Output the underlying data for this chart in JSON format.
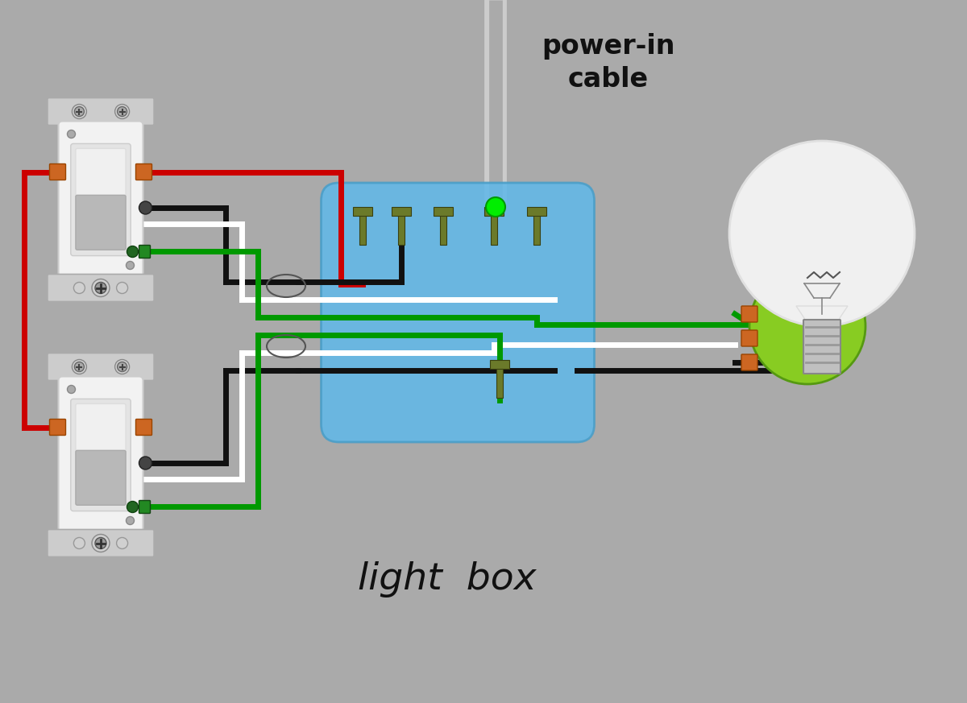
{
  "bg_color": "#aaaaaa",
  "power_in_label": "power-in\ncable",
  "light_box_label": "light  box",
  "red": "#cc0000",
  "black": "#111111",
  "white": "#ffffff",
  "green": "#009900",
  "bright_green": "#00ee00",
  "blue_box": "#62b8e8",
  "box_edge": "#4a9ec8",
  "switch_white": "#f2f2f2",
  "switch_inner": "#e4e4e4",
  "switch_paddle_top": "#e8e8e8",
  "switch_paddle_bot": "#c0c0c0",
  "terminal_olive": "#6b7a2a",
  "orange_term": "#cc6622",
  "bulb_glass": "#f0f0f0",
  "bulb_neck": "#c8c8c8",
  "bulb_socket_green": "#88cc22",
  "cable_outer": "#bbbbbb",
  "cable_inner": "#999999",
  "bracket_gray": "#cccccc",
  "bracket_dark": "#999999",
  "screw_dark": "#666666"
}
